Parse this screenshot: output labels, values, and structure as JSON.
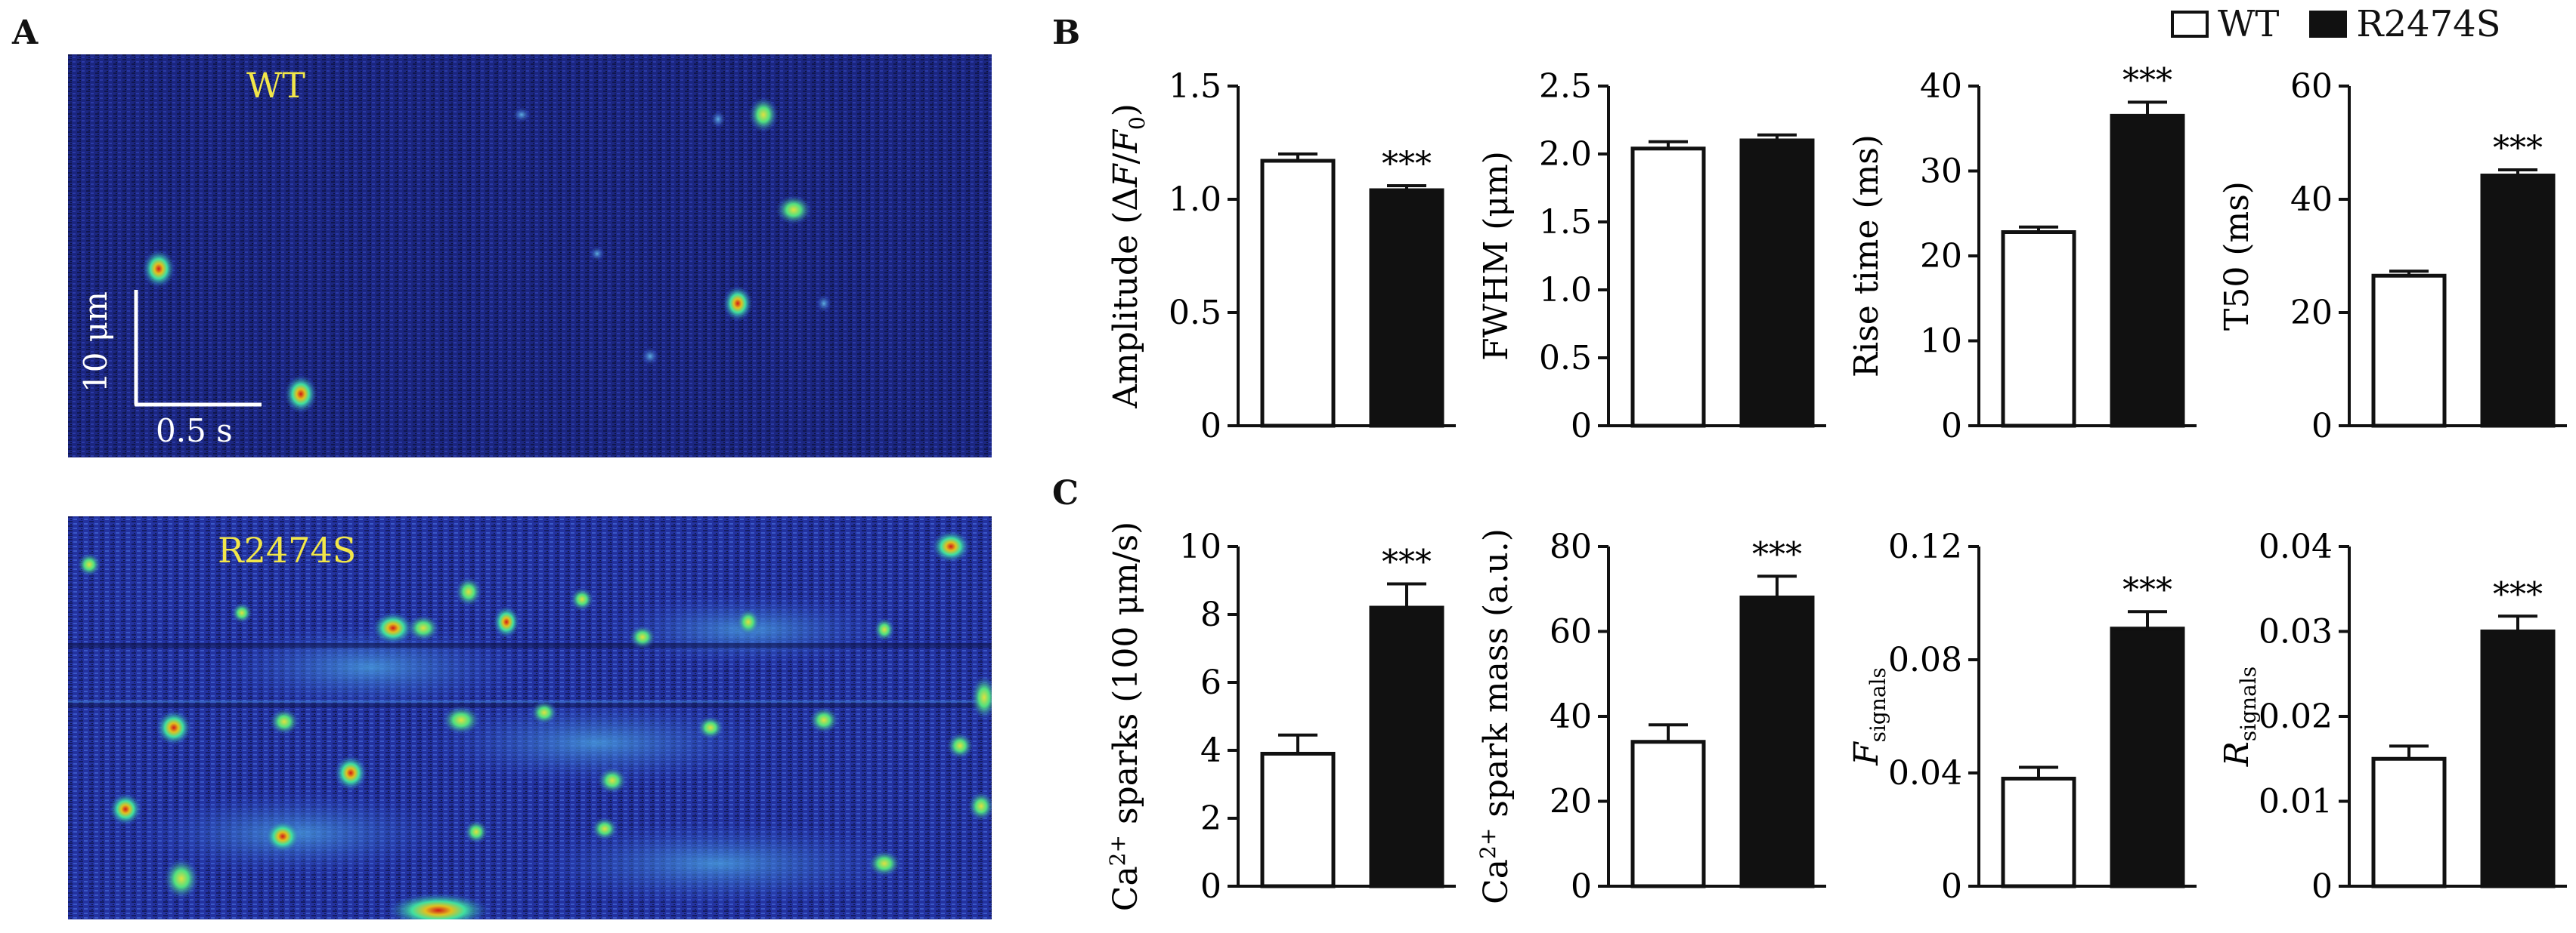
{
  "panels": {
    "a_letter": "A",
    "b_letter": "B",
    "c_letter": "C"
  },
  "images": {
    "top_label": "WT",
    "bottom_label": "R2474S",
    "scale_y": "10 μm",
    "scale_x": "0.5 s"
  },
  "legend": {
    "items": [
      {
        "label": "WT",
        "color": "#ffffff"
      },
      {
        "label": "R2474S",
        "color": "#111111"
      }
    ]
  },
  "colors": {
    "wt_fill": "#ffffff",
    "mut_fill": "#111111",
    "stroke": "#111111",
    "image_bg": "#1e2a8c",
    "image_label": "#f1e64a"
  },
  "chart_data": [
    {
      "type": "bar",
      "categories": [
        "WT",
        "R2474S"
      ],
      "values": [
        1.17,
        1.04
      ],
      "errors": [
        0.03,
        0.02
      ],
      "ylim": [
        0,
        1.5
      ],
      "ticks": [
        "0",
        "0.5",
        "1.0",
        "1.5"
      ],
      "tick_values": [
        0,
        0.5,
        1.0,
        1.5
      ],
      "ylabel": "Amplitude (ΔF/F0)",
      "significance": "***"
    },
    {
      "type": "bar",
      "categories": [
        "WT",
        "R2474S"
      ],
      "values": [
        2.04,
        2.1
      ],
      "errors": [
        0.05,
        0.04
      ],
      "ylim": [
        0,
        2.5
      ],
      "ticks": [
        "0",
        "0.5",
        "1.0",
        "1.5",
        "2.0",
        "2.5"
      ],
      "tick_values": [
        0,
        0.5,
        1.0,
        1.5,
        2.0,
        2.5
      ],
      "ylabel": "FWHM (μm)",
      "significance": ""
    },
    {
      "type": "bar",
      "categories": [
        "WT",
        "R2474S"
      ],
      "values": [
        22.8,
        36.5
      ],
      "errors": [
        0.6,
        1.6
      ],
      "ylim": [
        0,
        40
      ],
      "ticks": [
        "0",
        "10",
        "20",
        "30",
        "40"
      ],
      "tick_values": [
        0,
        10,
        20,
        30,
        40
      ],
      "ylabel": "Rise time (ms)",
      "significance": "***"
    },
    {
      "type": "bar",
      "categories": [
        "WT",
        "R2474S"
      ],
      "values": [
        26.5,
        44.2
      ],
      "errors": [
        0.8,
        1.0
      ],
      "ylim": [
        0,
        60
      ],
      "ticks": [
        "0",
        "20",
        "40",
        "60"
      ],
      "tick_values": [
        0,
        20,
        40,
        60
      ],
      "ylabel": "T50 (ms)",
      "significance": "***"
    },
    {
      "type": "bar",
      "categories": [
        "WT",
        "R2474S"
      ],
      "values": [
        3.9,
        8.2
      ],
      "errors": [
        0.55,
        0.7
      ],
      "ylim": [
        0,
        10
      ],
      "ticks": [
        "0",
        "2",
        "4",
        "6",
        "8",
        "10"
      ],
      "tick_values": [
        0,
        2,
        4,
        6,
        8,
        10
      ],
      "ylabel": "Ca2+ sparks (100 μm/s)",
      "significance": "***"
    },
    {
      "type": "bar",
      "categories": [
        "WT",
        "R2474S"
      ],
      "values": [
        34,
        68
      ],
      "errors": [
        4,
        5
      ],
      "ylim": [
        0,
        80
      ],
      "ticks": [
        "0",
        "20",
        "40",
        "60",
        "80"
      ],
      "tick_values": [
        0,
        20,
        40,
        60,
        80
      ],
      "ylabel": "Ca2+ spark mass (a.u.)",
      "significance": "***"
    },
    {
      "type": "bar",
      "categories": [
        "WT",
        "R2474S"
      ],
      "values": [
        0.038,
        0.091
      ],
      "errors": [
        0.004,
        0.006
      ],
      "ylim": [
        0,
        0.12
      ],
      "ticks": [
        "0",
        "0.04",
        "0.08",
        "0.12"
      ],
      "tick_values": [
        0,
        0.04,
        0.08,
        0.12
      ],
      "ylabel": "Fsignals",
      "significance": "***"
    },
    {
      "type": "bar",
      "categories": [
        "WT",
        "R2474S"
      ],
      "values": [
        0.015,
        0.03
      ],
      "errors": [
        0.0015,
        0.0018
      ],
      "ylim": [
        0,
        0.04
      ],
      "ticks": [
        "0",
        "0.01",
        "0.02",
        "0.03",
        "0.04"
      ],
      "tick_values": [
        0,
        0.01,
        0.02,
        0.03,
        0.04
      ],
      "ylabel": "Rsignals",
      "significance": "***"
    }
  ]
}
